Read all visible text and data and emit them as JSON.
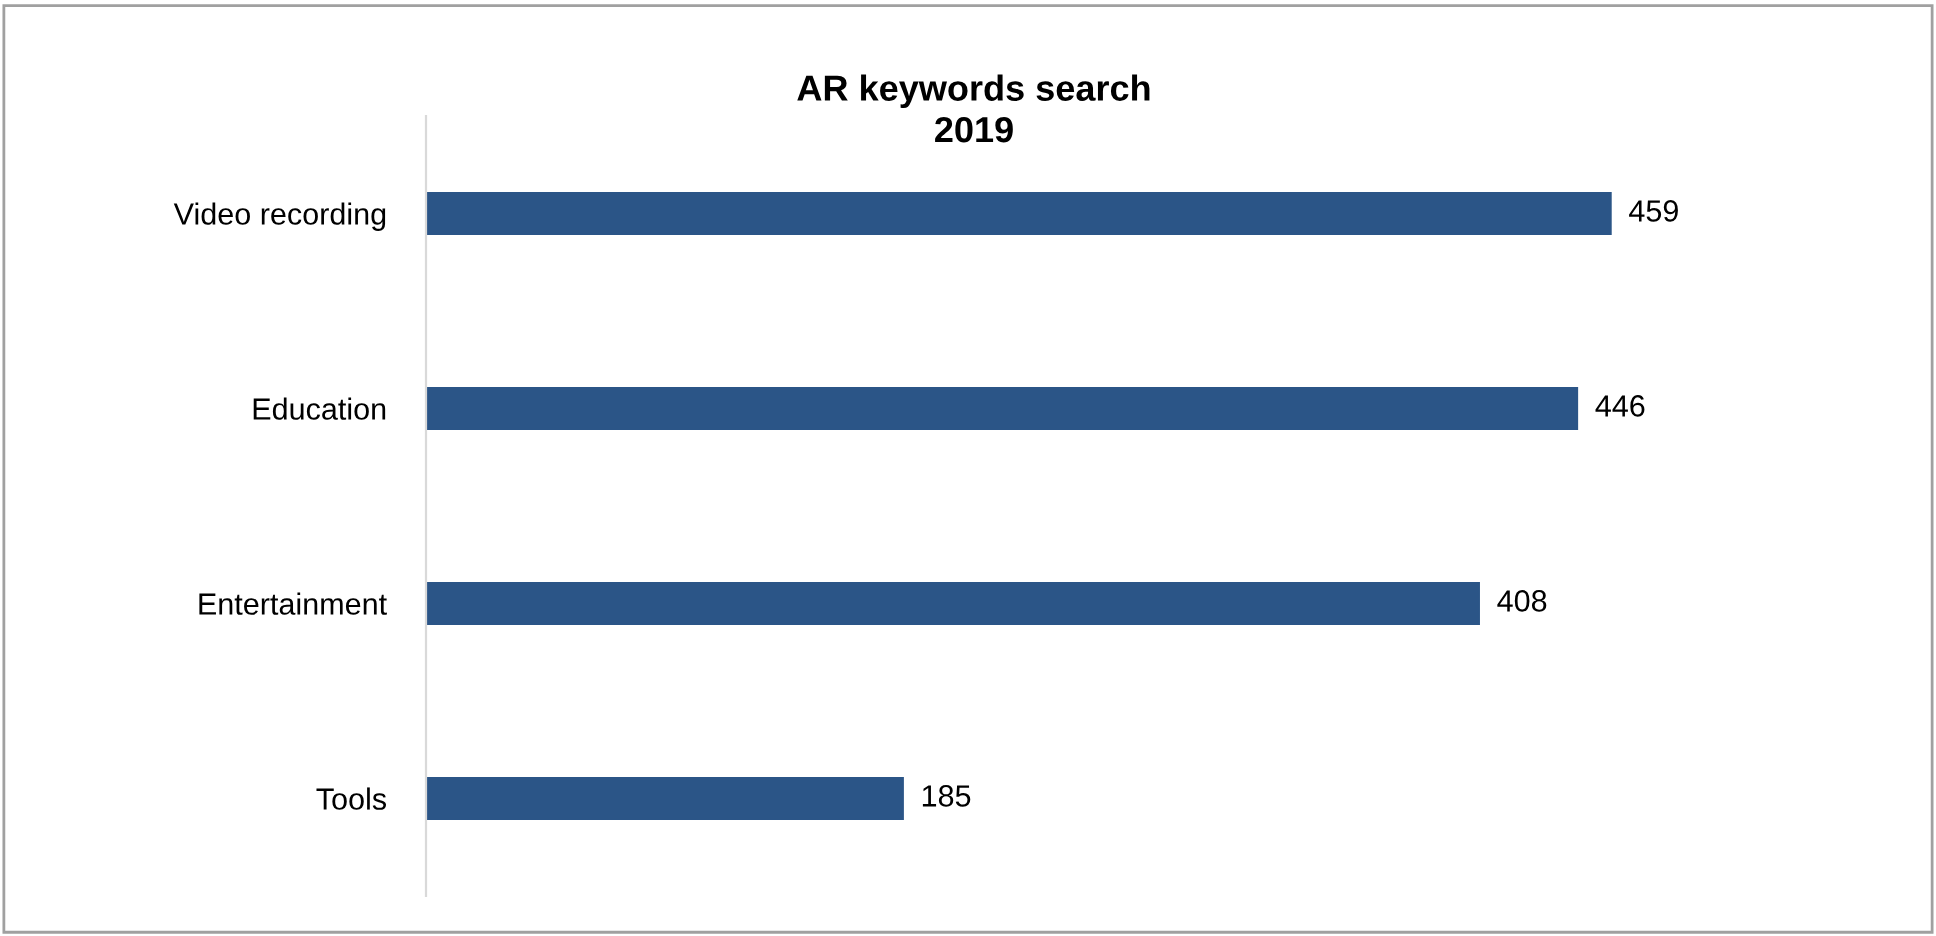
{
  "chart_data": {
    "type": "bar",
    "orientation": "horizontal",
    "title": "AR keywords search\n2019",
    "categories": [
      "Video recording",
      "Education",
      "Entertainment",
      "Tools"
    ],
    "values": [
      459,
      446,
      408,
      185
    ],
    "color": "#2b5587",
    "data_labels": true,
    "grid": false,
    "legend": false,
    "tick_labels": "y"
  }
}
